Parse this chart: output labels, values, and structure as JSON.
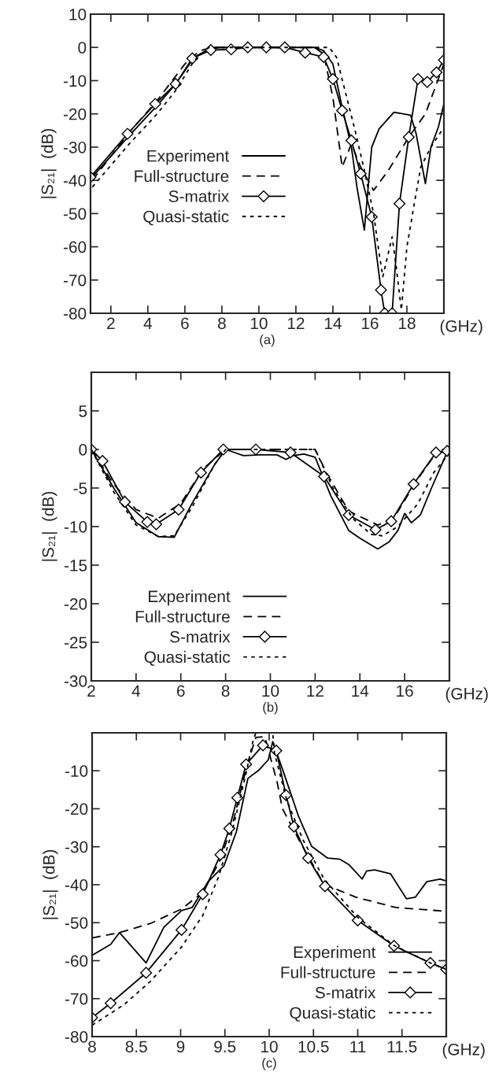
{
  "chart_data": [
    {
      "type": "line",
      "ylabel": "|S₂₁|  (dB)",
      "xlabel": "(a)",
      "annotations": [
        "(GHz)"
      ],
      "xlim": [
        0.9,
        20
      ],
      "ylim": [
        -80,
        10
      ],
      "xticks": [
        2,
        4,
        6,
        8,
        10,
        12,
        14,
        16,
        18
      ],
      "yticks": [
        -80,
        -70,
        -60,
        -50,
        -40,
        -30,
        -20,
        -10,
        0,
        10
      ],
      "legend": "left",
      "grid": false,
      "series": [
        {
          "name": "Experiment",
          "color": "#000000",
          "line_style": "solid",
          "marker": "none",
          "x": [
            1,
            3,
            4.5,
            5.5,
            6.5,
            7.3,
            8,
            13,
            13.5,
            14,
            14.5,
            15,
            15.3,
            15.7,
            16.1,
            16.5,
            17.3,
            18.2,
            18.5,
            18.8,
            19.0,
            19.3,
            19.7,
            20
          ],
          "values": [
            -39,
            -26.5,
            -17.5,
            -11,
            -3,
            -0.5,
            0,
            0,
            -1,
            -5,
            -18,
            -30,
            -42,
            -55,
            -30,
            -24.5,
            -19.5,
            -20.4,
            -26,
            -35,
            -41,
            -30,
            -24,
            -17
          ]
        },
        {
          "name": "Full-structure",
          "color": "#000000",
          "line_style": "dashed",
          "marker": "none",
          "x": [
            1,
            3,
            4.5,
            6,
            6.8,
            7.5,
            13,
            13.5,
            14,
            14.5,
            15,
            15.5,
            16.2,
            17,
            18.1,
            19,
            19.7,
            20
          ],
          "values": [
            -40,
            -25.5,
            -16,
            -5,
            -1,
            0,
            0,
            -2,
            -15,
            -36,
            -29,
            -36,
            -43,
            -37,
            -27,
            -20,
            -9.5,
            -5
          ]
        },
        {
          "name": "S-matrix",
          "color": "#000000",
          "line_style": "solid",
          "marker": "diamond",
          "x": [
            0.9,
            2.9,
            4.4,
            5.5,
            6.4,
            7.4,
            8.5,
            9.4,
            10.4,
            11.4,
            12.5,
            13.5,
            14.0,
            14.5,
            15.0,
            15.5,
            16.1,
            16.6,
            16.8,
            17.0,
            17.2,
            17.6,
            18.1,
            18.6,
            19.1,
            19.6,
            20
          ],
          "values": [
            -39,
            -26,
            -17,
            -11,
            -3.3,
            -0.8,
            -0.6,
            0,
            0,
            0,
            -1.6,
            -2.9,
            -9.5,
            -19,
            -28,
            -38,
            -51,
            -73,
            -80,
            null,
            -80,
            -47,
            -27,
            -9.5,
            -10.4,
            -7.5,
            -3.8
          ]
        },
        {
          "name": "Quasi-static",
          "color": "#000000",
          "line_style": "dotted",
          "marker": "none",
          "x": [
            1,
            3,
            4.5,
            5.5,
            6.5,
            7.3,
            13.8,
            14.2,
            14.7,
            15.2,
            15.7,
            16.2,
            16.5,
            16.7,
            17.2,
            17.4,
            17.7,
            18,
            18.4,
            18.75,
            19.3,
            20
          ],
          "values": [
            -42,
            -29,
            -20,
            -13,
            -4,
            0,
            0,
            -3,
            -14,
            -25,
            -37,
            -50,
            -62,
            -69,
            -57,
            -65,
            -79,
            -60,
            -47,
            -36,
            -30,
            -24
          ]
        }
      ]
    },
    {
      "type": "line",
      "ylabel": "|S₂₁|  (dB)",
      "xlabel": "(b)",
      "annotations": [
        "(GHz)"
      ],
      "xlim": [
        2,
        18
      ],
      "ylim": [
        -30,
        10
      ],
      "xticks": [
        2,
        4,
        6,
        8,
        10,
        12,
        14,
        16
      ],
      "yticks": [
        -30,
        -25,
        -20,
        -15,
        -10,
        -5,
        0,
        5
      ],
      "legend": "bottom left",
      "grid": false,
      "series": [
        {
          "name": "Experiment",
          "color": "#000000",
          "line_style": "solid",
          "marker": "none",
          "x": [
            2,
            3,
            4,
            5,
            5.7,
            6.5,
            7.5,
            8,
            8.8,
            9.5,
            10.3,
            10.7,
            11,
            11.5,
            12,
            12.7,
            13.5,
            14,
            14.8,
            15.3,
            15.7,
            16,
            16.3,
            16.7,
            17.2,
            17.8,
            18
          ],
          "values": [
            0,
            -5,
            -9.5,
            -11.3,
            -11.4,
            -7,
            -2,
            0,
            -0.8,
            -0.7,
            -0.7,
            -1.3,
            -0.8,
            -0.6,
            -1,
            -6,
            -10.5,
            -11.5,
            -12.9,
            -12,
            -10.5,
            -8.3,
            -9.5,
            -8.5,
            -5,
            -1,
            0
          ]
        },
        {
          "name": "Full-structure",
          "color": "#000000",
          "line_style": "dashed",
          "marker": "none",
          "x": [
            2,
            3,
            4,
            5,
            6,
            7,
            8,
            12,
            12.5,
            13.5,
            14.8,
            15.5,
            16.5,
            17.4,
            18
          ],
          "values": [
            0,
            -4.5,
            -7.8,
            -8.9,
            -7,
            -2.5,
            0,
            0,
            -3,
            -8,
            -9.8,
            -9,
            -4.2,
            -0.5,
            -0.2
          ]
        },
        {
          "name": "S-matrix",
          "color": "#000000",
          "line_style": "solid",
          "marker": "diamond",
          "x": [
            2,
            2.5,
            3.5,
            4.5,
            4.9,
            5.9,
            6.9,
            7.9,
            9.35,
            10.9,
            12.4,
            13.5,
            14.7,
            15.4,
            16.4,
            17.4,
            17.9
          ],
          "values": [
            0,
            -1.5,
            -6.8,
            -9.4,
            -9.7,
            -7.8,
            -3.0,
            0,
            0,
            -0.4,
            -3.5,
            -8.5,
            -10.4,
            -9.3,
            -4.5,
            -0.4,
            -0.2
          ]
        },
        {
          "name": "Quasi-static",
          "color": "#000000",
          "line_style": "dotted",
          "marker": "none",
          "x": [
            2,
            3,
            4,
            5,
            5.7,
            6.5,
            7.5,
            8,
            12,
            12.8,
            13.7,
            14.5,
            15,
            15.7,
            16.6,
            17.3,
            18
          ],
          "values": [
            0,
            -5.5,
            -9.8,
            -11.3,
            -11.2,
            -7.5,
            -2,
            0,
            0,
            -5,
            -9,
            -11,
            -11.2,
            -10,
            -7,
            -3,
            -0.5
          ]
        }
      ]
    },
    {
      "type": "line",
      "ylabel": "|S₂₁|  (dB)",
      "xlabel": "(c)",
      "annotations": [
        "(GHz)"
      ],
      "xlim": [
        8,
        12
      ],
      "ylim": [
        -80,
        0
      ],
      "xticks": [
        8,
        8.5,
        9,
        9.5,
        10,
        10.5,
        11,
        11.5
      ],
      "yticks": [
        -80,
        -70,
        -60,
        -50,
        -40,
        -30,
        -20,
        -10
      ],
      "legend": "bottom right",
      "grid": false,
      "series": [
        {
          "name": "Experiment",
          "color": "#000000",
          "line_style": "solid",
          "marker": "none",
          "x": [
            8,
            8.21,
            8.31,
            8.61,
            8.81,
            9.01,
            9.13,
            9.31,
            9.49,
            9.63,
            9.76,
            9.88,
            9.99,
            10.04,
            10.17,
            10.33,
            10.48,
            10.66,
            10.8,
            10.9,
            11.05,
            11.1,
            11.19,
            11.37,
            11.55,
            11.65,
            11.78,
            11.93,
            12
          ],
          "values": [
            -58.6,
            -55.7,
            -52.6,
            -60.6,
            -51.2,
            -46.8,
            -46,
            -39.2,
            -35,
            -26,
            -12,
            -9.9,
            -7.1,
            -2.3,
            -10.9,
            -21.9,
            -29.9,
            -33,
            -33.3,
            -34.7,
            -38.5,
            -36.4,
            -36.1,
            -37.1,
            -43.7,
            -43.3,
            -39.2,
            -38.5,
            -39
          ]
        },
        {
          "name": "Full-structure",
          "color": "#000000",
          "line_style": "dashed",
          "marker": "none",
          "x": [
            8,
            8.31,
            8.66,
            9.01,
            9.25,
            9.43,
            9.58,
            9.75,
            9.85,
            9.95,
            10.09,
            10.15,
            10.35,
            10.62,
            10.98,
            11.43,
            12
          ],
          "values": [
            -54,
            -52.6,
            -50.2,
            -46.4,
            -42,
            -34.3,
            -24.7,
            -8.5,
            -1.2,
            -1,
            -13,
            -20,
            -28.8,
            -39.9,
            -43.3,
            -46,
            -47
          ]
        },
        {
          "name": "S-matrix",
          "color": "#000000",
          "line_style": "solid",
          "marker": "diamond",
          "x": [
            8,
            8.21,
            8.61,
            9.01,
            9.25,
            9.45,
            9.55,
            9.64,
            9.74,
            9.93,
            10.08,
            10.19,
            10.28,
            10.44,
            10.63,
            11.0,
            11.41,
            11.82,
            12
          ],
          "values": [
            -75,
            -71.2,
            -63.2,
            -51.9,
            -42.5,
            -32.1,
            -25.2,
            -17.1,
            -8.3,
            -3.3,
            -4.7,
            -16.4,
            -24.7,
            -33,
            -40.4,
            -49.4,
            -56.1,
            -60.6,
            -62.3
          ]
        },
        {
          "name": "Quasi-static",
          "color": "#000000",
          "line_style": "dotted",
          "marker": "none",
          "x": [
            8,
            8.36,
            8.66,
            9.01,
            9.25,
            9.43,
            9.58,
            9.73,
            9.82,
            9.85,
            10.04,
            10.06,
            10.2,
            10.38,
            10.62,
            11.0,
            11.41,
            11.82,
            12
          ],
          "values": [
            -77,
            -71.6,
            -65.4,
            -56.4,
            -48.1,
            -37.8,
            -26.1,
            -11.6,
            -1.9,
            0,
            0,
            -5.4,
            -17.8,
            -28.1,
            -38.5,
            -48.6,
            -56,
            -60.6,
            -62.3
          ]
        }
      ]
    }
  ]
}
